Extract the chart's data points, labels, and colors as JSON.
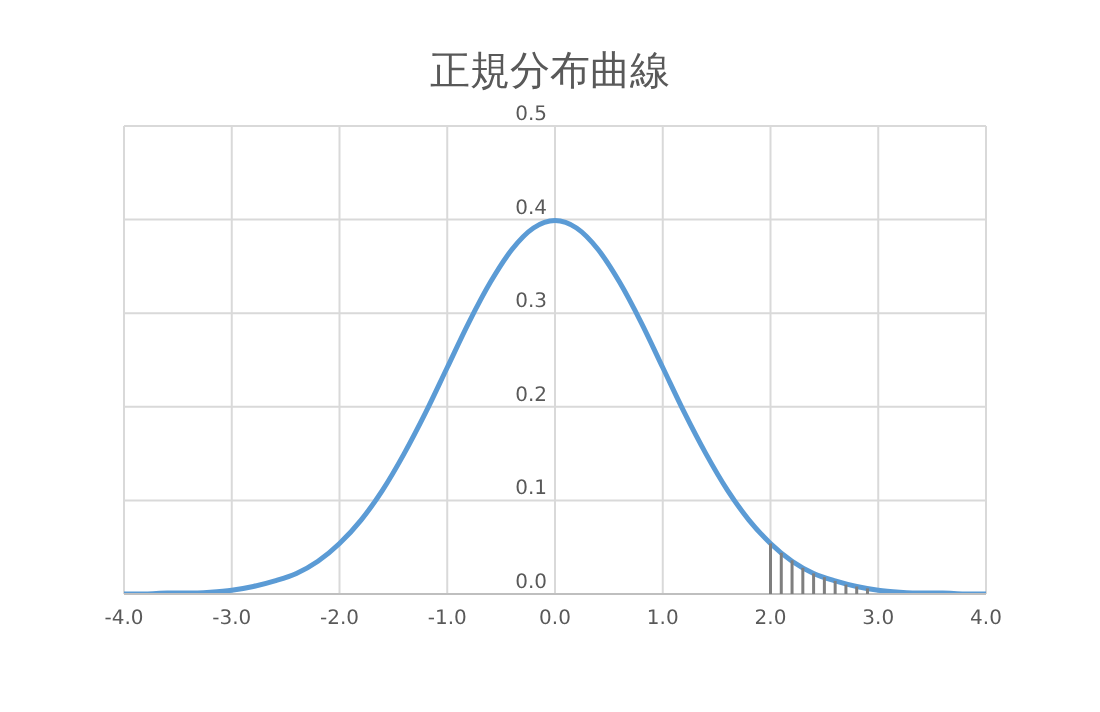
{
  "chart_data": {
    "type": "line",
    "title": "正規分布曲線",
    "xlim": [
      -4,
      4
    ],
    "xticks": [
      {
        "value": -4,
        "label": "-4.0"
      },
      {
        "value": -3,
        "label": "-3.0"
      },
      {
        "value": -2,
        "label": "-2.0"
      },
      {
        "value": -1,
        "label": "-1.0"
      },
      {
        "value": 0,
        "label": "0.0"
      },
      {
        "value": 1,
        "label": "1.0"
      },
      {
        "value": 2,
        "label": "2.0"
      },
      {
        "value": 3,
        "label": "3.0"
      },
      {
        "value": 4,
        "label": "4.0"
      }
    ],
    "ylim": [
      0,
      0.5
    ],
    "yticks": [
      {
        "value": 0,
        "label": "0.0"
      },
      0.1,
      0.2,
      0.3,
      0.4,
      0.5
    ],
    "grid": true,
    "marker": "none",
    "line_style": "solid",
    "series": [
      {
        "color": "#5b9bd5",
        "x": [
          -4,
          -3.8,
          -3.6,
          -3.4,
          -3.2,
          -3,
          -2.8,
          -2.6,
          -2.4,
          -2.2,
          -2,
          -1.8,
          -1.6,
          -1.4,
          -1.2,
          -1,
          -0.8,
          -0.6,
          -0.4,
          -0.2,
          0,
          0.2,
          0.4,
          0.6,
          0.8,
          1,
          1.2,
          1.4,
          1.6,
          1.8,
          2,
          2.2,
          2.4,
          2.6,
          2.8,
          3,
          3.2,
          3.4,
          3.6,
          3.8,
          4
        ],
        "values": [
          0.0,
          0.0,
          0.001,
          0.001,
          0.002,
          0.004,
          0.008,
          0.014,
          0.022,
          0.035,
          0.054,
          0.079,
          0.111,
          0.15,
          0.194,
          0.242,
          0.29,
          0.333,
          0.368,
          0.391,
          0.399,
          0.391,
          0.368,
          0.333,
          0.29,
          0.242,
          0.194,
          0.15,
          0.111,
          0.079,
          0.054,
          0.035,
          0.022,
          0.014,
          0.008,
          0.004,
          0.002,
          0.001,
          0.001,
          0.0,
          0.0
        ]
      },
      {
        "type": "bar",
        "color": "#7f7f7f",
        "x": [
          2,
          2.1,
          2.2,
          2.3,
          2.4,
          2.5,
          2.6,
          2.7,
          2.8,
          2.9
        ],
        "values": [
          0.054,
          0.044,
          0.036,
          0.028,
          0.022,
          0.018,
          0.014,
          0.01,
          0.008,
          0.006
        ]
      }
    ]
  }
}
